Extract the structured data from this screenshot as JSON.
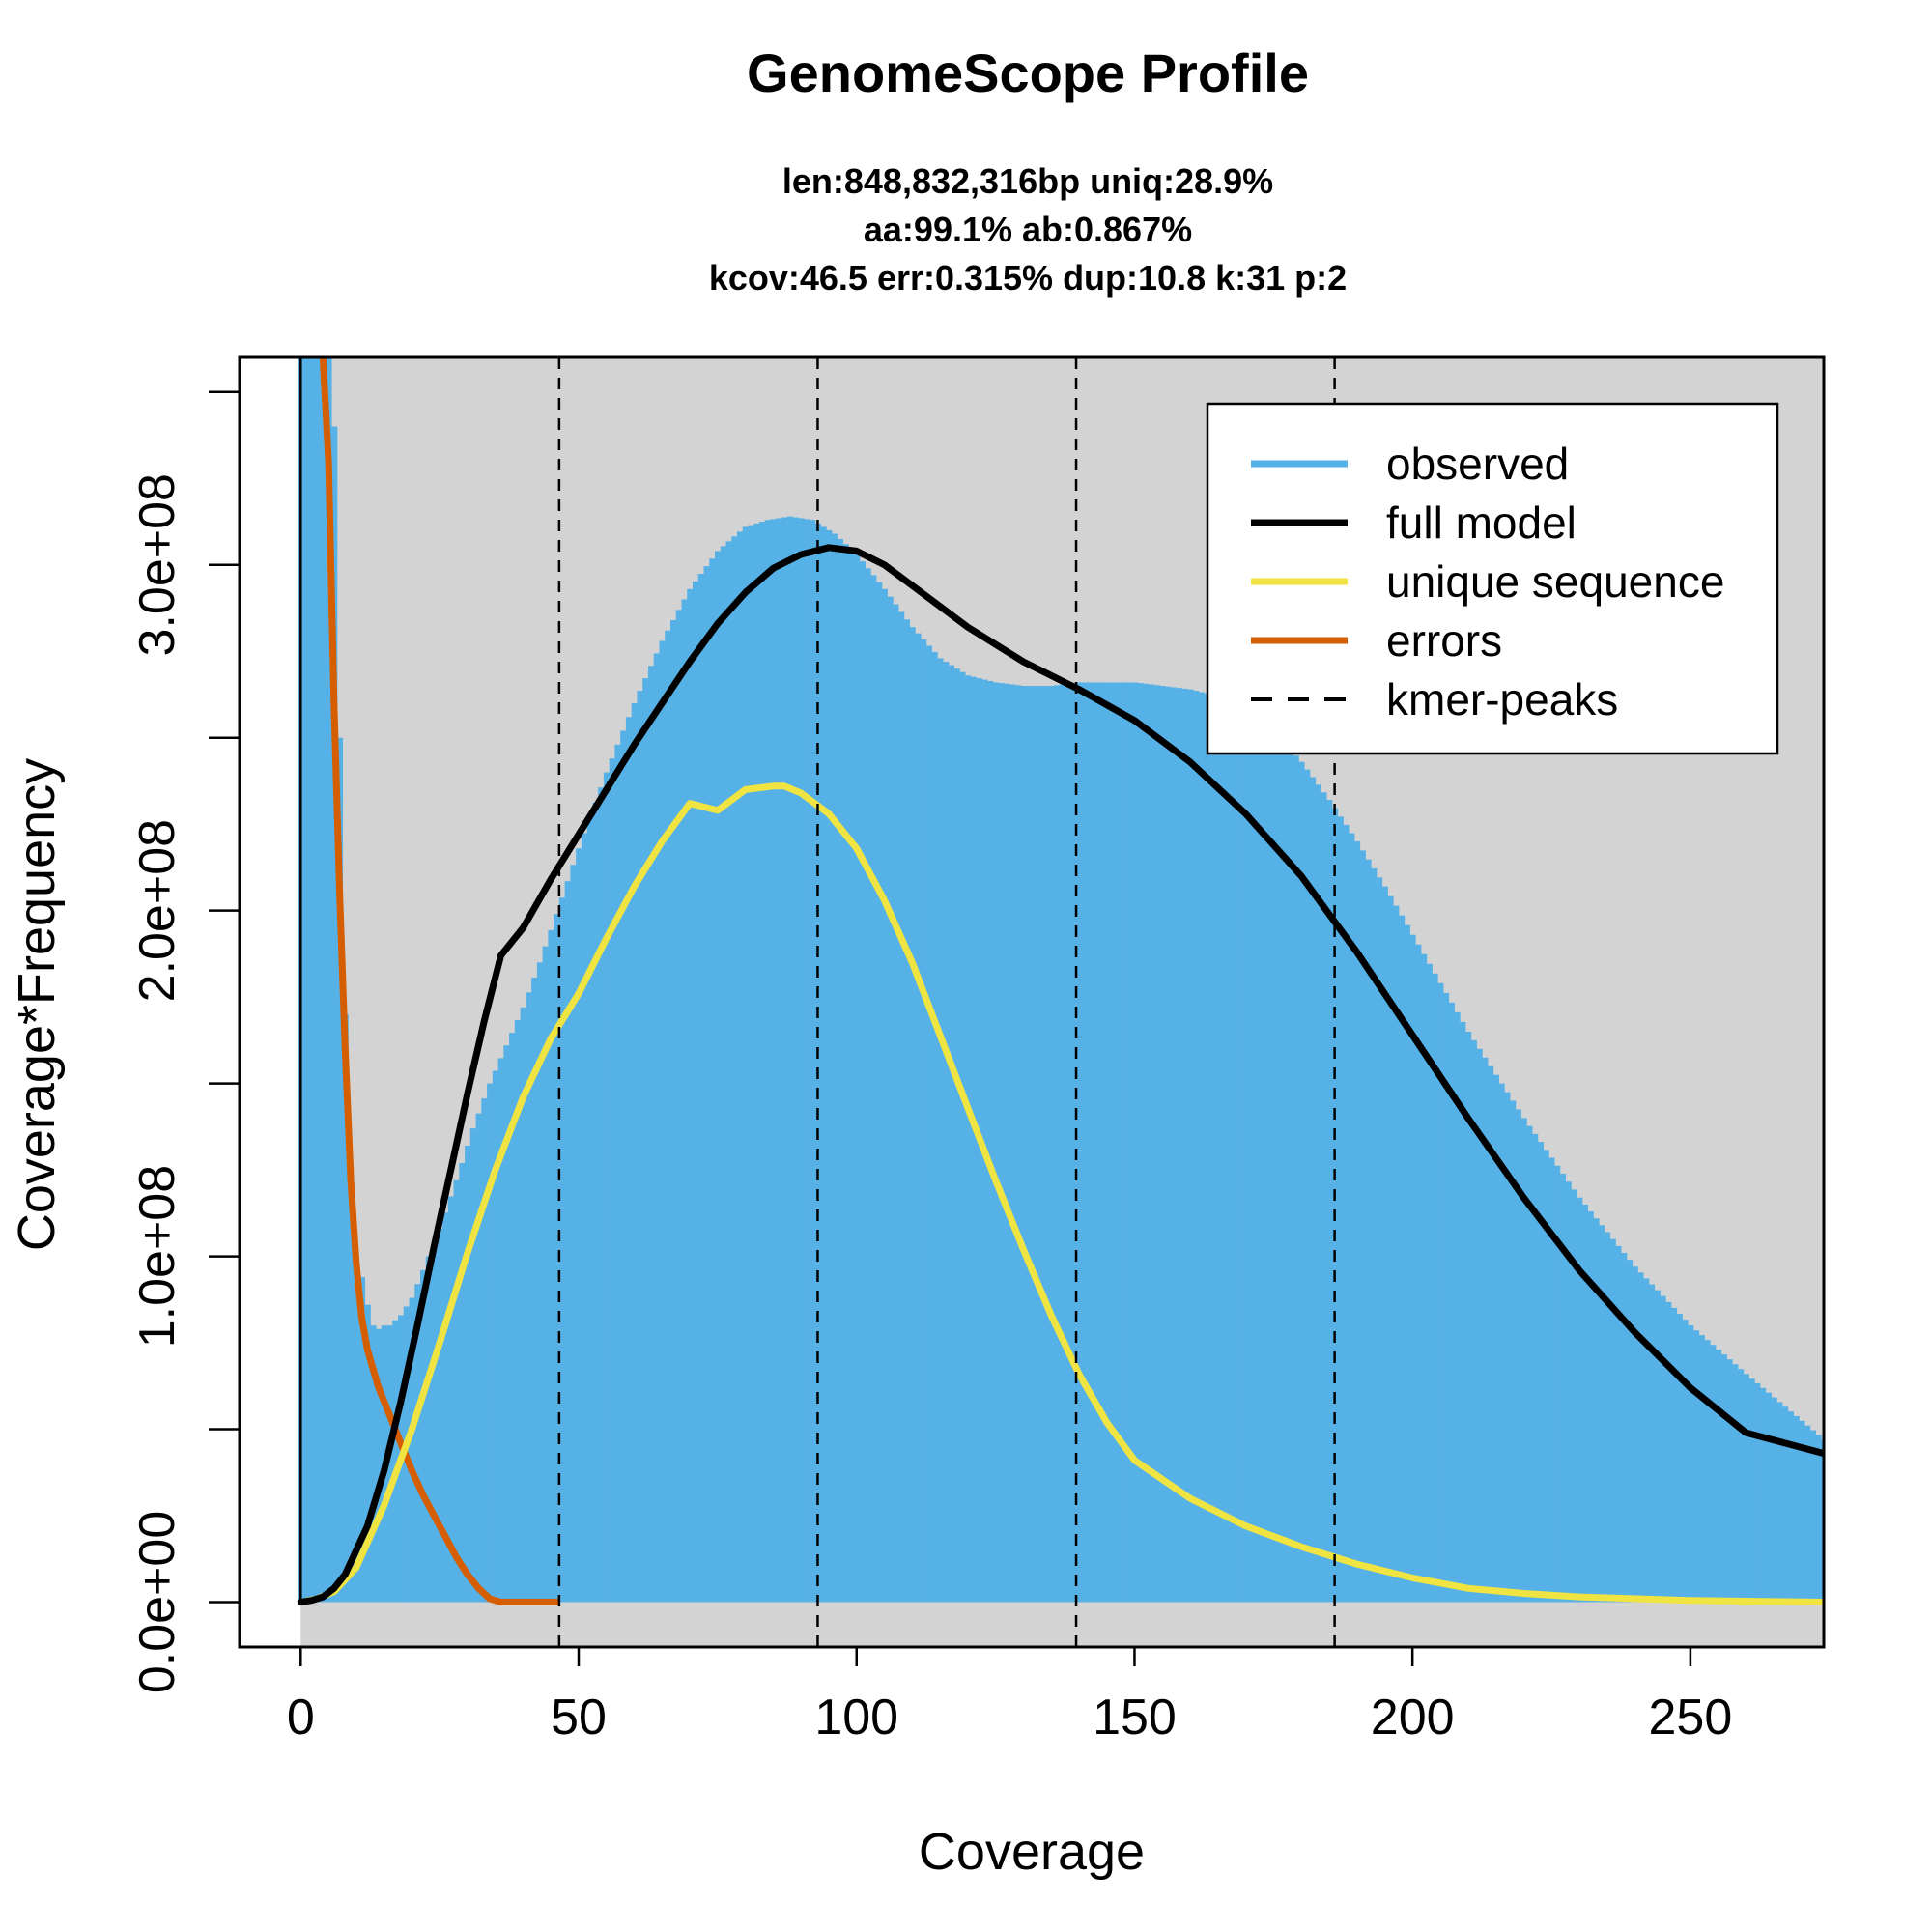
{
  "chart_data": {
    "type": "line",
    "title": "GenomeScope Profile",
    "subtitle": [
      "len:848,832,316bp uniq:28.9%",
      "aa:99.1% ab:0.867%",
      "kcov:46.5 err:0.315%  dup:10.8  k:31 p:2"
    ],
    "xlabel": "Coverage",
    "ylabel": "Coverage*Frequency",
    "xlim": [
      -11,
      274
    ],
    "ylim": [
      -13000000,
      360000000
    ],
    "x_ticks": [
      0,
      50,
      100,
      150,
      200,
      250
    ],
    "x_tick_labels": [
      "0",
      "50",
      "100",
      "150",
      "200",
      "250"
    ],
    "y_ticks": [
      0,
      50000000,
      100000000,
      150000000,
      200000000,
      250000000,
      300000000,
      350000000
    ],
    "y_tick_labels": [
      "0.0e+00",
      "",
      "1.0e+08",
      "",
      "2.0e+08",
      "",
      "3.0e+08",
      ""
    ],
    "grid": false,
    "legend_position": "top-right",
    "colors": {
      "background": "#d3d3d3",
      "observed": "#56b1e7",
      "full_model": "#000000",
      "unique_sequence": "#f0e442",
      "errors": "#d55e00",
      "kmer_peaks": "#000000"
    },
    "kmer_peaks": [
      46.5,
      93,
      139.5,
      186
    ],
    "series": [
      {
        "name": "observed",
        "style": "histogram",
        "x": [
          0,
          1,
          2,
          3,
          4,
          5,
          6,
          7,
          8,
          9,
          10,
          11,
          12,
          13,
          14,
          15,
          16,
          18,
          20,
          22,
          25,
          28,
          31,
          34,
          37,
          40,
          43,
          46,
          50,
          55,
          60,
          65,
          70,
          75,
          80,
          84,
          88,
          92,
          96,
          100,
          105,
          110,
          115,
          120,
          125,
          130,
          135,
          140,
          145,
          150,
          155,
          160,
          165,
          170,
          175,
          180,
          185,
          190,
          195,
          200,
          210,
          220,
          230,
          240,
          250,
          260,
          274
        ],
        "y": [
          360000000,
          360000000,
          360000000,
          360000000,
          360000000,
          360000000,
          340000000,
          250000000,
          170000000,
          120000000,
          98000000,
          94000000,
          86000000,
          80000000,
          79000000,
          80000000,
          80000000,
          83000000,
          88000000,
          96000000,
          108000000,
          122000000,
          137000000,
          150000000,
          161000000,
          172000000,
          185000000,
          199000000,
          218000000,
          240000000,
          260000000,
          278000000,
          293000000,
          304000000,
          311000000,
          313000000,
          314000000,
          313000000,
          309000000,
          303000000,
          293000000,
          282000000,
          273000000,
          268000000,
          266000000,
          265000000,
          265000000,
          266000000,
          266000000,
          266000000,
          265000000,
          264000000,
          262000000,
          258000000,
          252000000,
          243000000,
          232000000,
          220000000,
          207000000,
          193000000,
          165000000,
          140000000,
          117000000,
          97000000,
          80000000,
          66000000,
          47000000
        ]
      },
      {
        "name": "full model",
        "style": "line",
        "x": [
          0,
          2,
          4,
          6,
          8,
          10,
          12,
          15,
          18,
          21,
          24,
          27,
          30,
          33,
          36,
          40,
          45,
          50,
          55,
          60,
          65,
          70,
          75,
          80,
          85,
          90,
          95,
          100,
          105,
          110,
          115,
          120,
          130,
          140,
          150,
          160,
          170,
          180,
          190,
          200,
          210,
          220,
          230,
          240,
          250,
          260,
          274
        ],
        "y": [
          0,
          500000,
          1500000,
          4000000,
          8000000,
          15000000,
          22000000,
          38000000,
          58000000,
          80000000,
          103000000,
          125000000,
          147000000,
          168000000,
          187000000,
          195000000,
          209000000,
          222000000,
          235000000,
          248000000,
          260000000,
          272000000,
          283000000,
          292000000,
          299000000,
          303000000,
          305000000,
          304000000,
          300000000,
          294000000,
          288000000,
          282000000,
          272000000,
          264000000,
          255000000,
          243000000,
          228000000,
          210000000,
          188000000,
          164000000,
          140000000,
          117000000,
          96000000,
          78000000,
          62000000,
          49000000,
          43000000
        ]
      },
      {
        "name": "unique sequence",
        "style": "line",
        "x": [
          0,
          3,
          6,
          10,
          15,
          20,
          25,
          30,
          35,
          40,
          45,
          50,
          55,
          60,
          65,
          70,
          75,
          80,
          85,
          87,
          90,
          95,
          100,
          105,
          110,
          115,
          120,
          125,
          130,
          135,
          140,
          145,
          150,
          160,
          170,
          180,
          190,
          200,
          210,
          220,
          230,
          250,
          274
        ],
        "y": [
          0,
          1000000,
          3000000,
          10000000,
          28000000,
          50000000,
          75000000,
          101000000,
          125000000,
          146000000,
          163000000,
          176000000,
          192000000,
          207000000,
          220000000,
          231000000,
          229000000,
          235000000,
          236000000,
          236000000,
          234000000,
          228000000,
          218000000,
          203000000,
          185000000,
          164000000,
          143000000,
          122000000,
          102000000,
          83000000,
          66000000,
          52000000,
          41000000,
          30000000,
          22000000,
          16000000,
          11000000,
          7000000,
          4000000,
          2500000,
          1500000,
          500000,
          0
        ]
      },
      {
        "name": "errors",
        "style": "line",
        "x": [
          4,
          5,
          6,
          7,
          8,
          9,
          10,
          11,
          12,
          14,
          16,
          18,
          20,
          22,
          24,
          26,
          28,
          30,
          32,
          34,
          36,
          40,
          46
        ],
        "y": [
          360000000,
          330000000,
          260000000,
          205000000,
          160000000,
          122000000,
          98000000,
          82000000,
          73000000,
          62000000,
          54000000,
          46000000,
          38000000,
          31000000,
          25000000,
          19000000,
          13000000,
          8000000,
          4000000,
          1000000,
          0,
          0,
          0
        ]
      },
      {
        "name": "kmer-peaks",
        "style": "dashed-vline"
      }
    ]
  }
}
